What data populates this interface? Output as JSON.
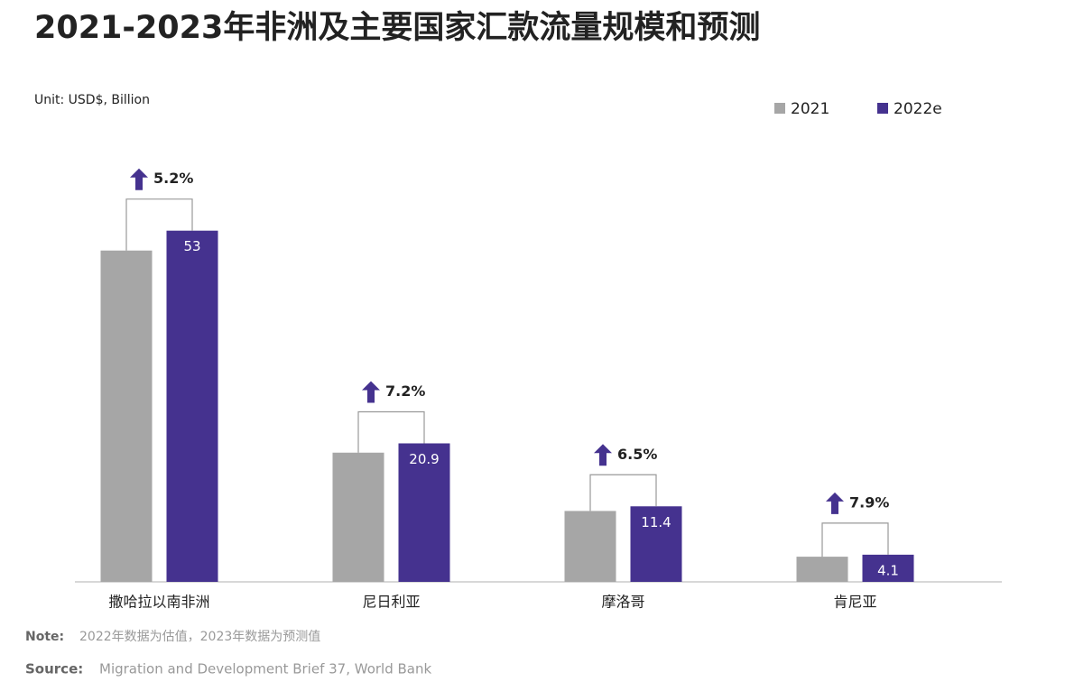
{
  "chart_data": {
    "type": "bar",
    "title": "2021-2023年非洲及主要国家汇款流量规模和预测",
    "subtitle": "Unit: USD$, Billion",
    "categories": [
      "撒哈拉以南非洲",
      "尼日利亚",
      "摩洛哥",
      "肯尼亚"
    ],
    "series": [
      {
        "name": "2021",
        "color": "#a6a6a6",
        "values": [
          50,
          19.5,
          10.7,
          3.8
        ]
      },
      {
        "name": "2022e",
        "color": "#45328f",
        "values": [
          53,
          20.9,
          11.4,
          4.1
        ]
      }
    ],
    "annotations": [
      "5.2%",
      "7.2%",
      "6.5%",
      "7.9%"
    ],
    "ylim": [
      0,
      55
    ],
    "legend": "top-right",
    "note_label": "Note:",
    "note": "2022年数据为估值，2023年数据为预测值",
    "source_label": "Source:",
    "source": "Migration and Development Brief 37, World Bank"
  }
}
